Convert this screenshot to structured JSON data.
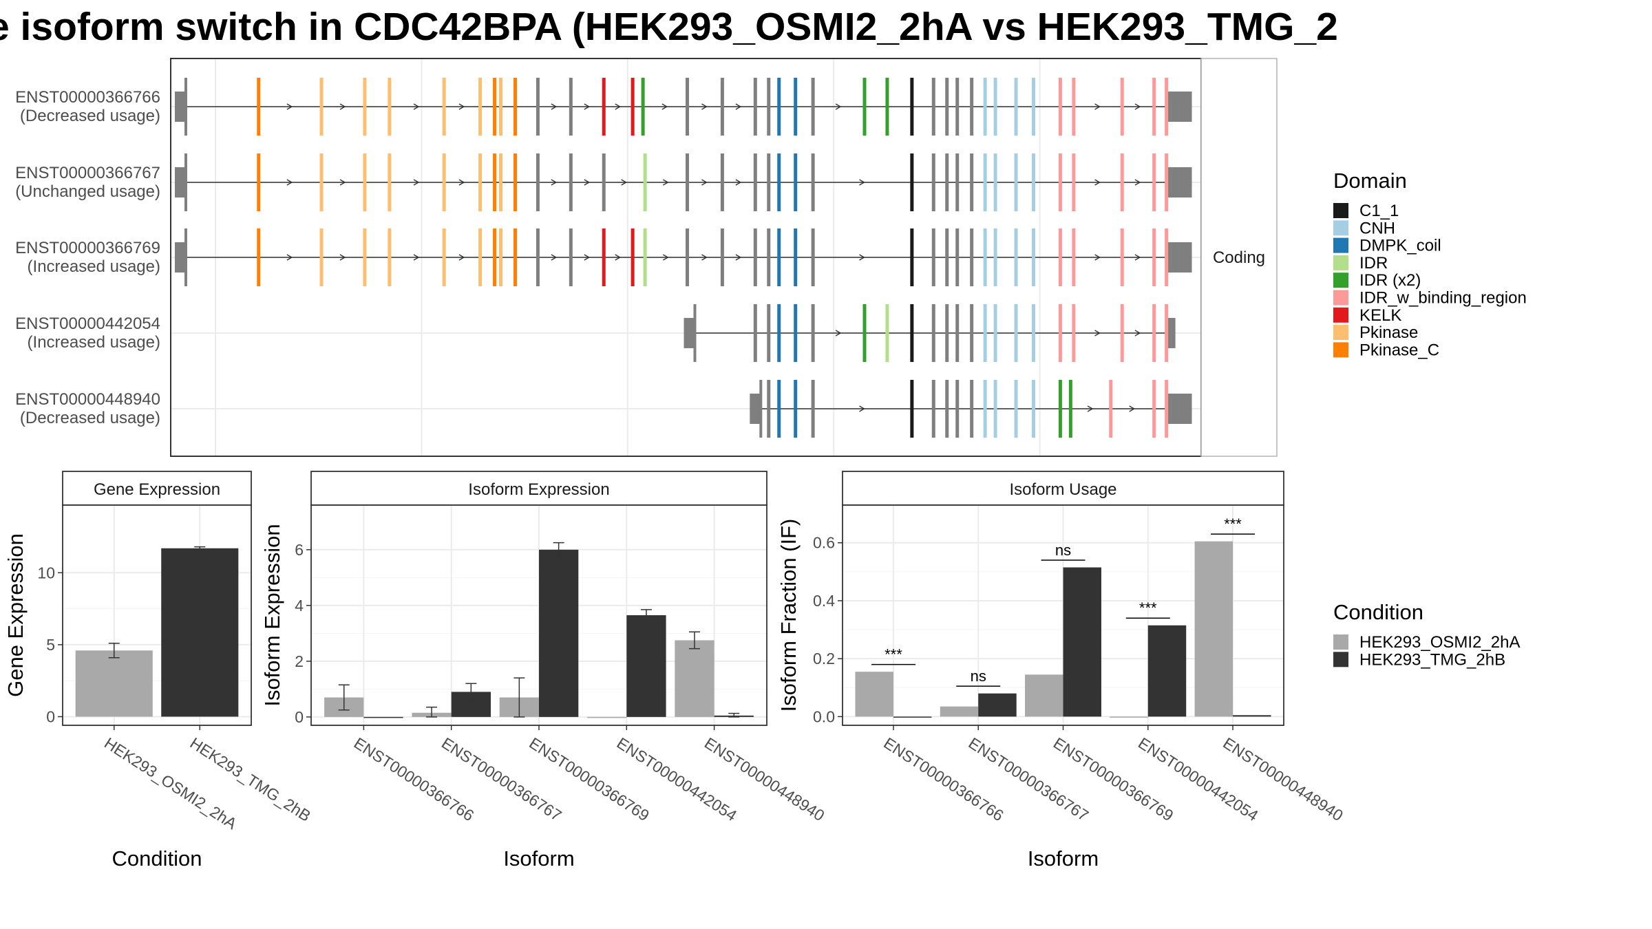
{
  "title": "e isoform switch in CDC42BPA (HEK293_OSMI2_2hA vs HEK293_TMG_2",
  "colors": {
    "HEK293_OSMI2_2hA": "#a9a9a9",
    "HEK293_TMG_2hB": "#333333",
    "grid": "#ebebeb",
    "intron_gray": "#7f7f7f"
  },
  "chart_data": [
    {
      "type": "gene-structure",
      "facet_label": "Coding",
      "x_domain": [
        0,
        1000
      ],
      "transcripts": [
        {
          "id": "ENST00000366766",
          "usage": "(Decreased usage)",
          "start": 4,
          "end": 991
        },
        {
          "id": "ENST00000366767",
          "usage": "(Unchanged usage)",
          "start": 4,
          "end": 991
        },
        {
          "id": "ENST00000366769",
          "usage": "(Increased usage)",
          "start": 4,
          "end": 991
        },
        {
          "id": "ENST00000442054",
          "usage": "(Increased usage)",
          "start": 498,
          "end": 975
        },
        {
          "id": "ENST00000448940",
          "usage": "(Decreased usage)",
          "start": 562,
          "end": 991
        }
      ],
      "exons": [
        [
          [
            85,
            "Pkinase_C"
          ],
          [
            146,
            "Pkinase"
          ],
          [
            188,
            "Pkinase"
          ],
          [
            212,
            "Pkinase"
          ],
          [
            265,
            "Pkinase"
          ],
          [
            300,
            "Pkinase"
          ],
          [
            314,
            "Pkinase_C"
          ],
          [
            320,
            "Pkinase"
          ],
          [
            334,
            "Pkinase_C"
          ],
          [
            356,
            "gray"
          ],
          [
            388,
            "gray"
          ],
          [
            420,
            "KELK"
          ],
          [
            448,
            "KELK"
          ],
          [
            458,
            "IDR (x2)"
          ],
          [
            501,
            "gray"
          ],
          [
            535,
            "gray"
          ],
          [
            567,
            "gray"
          ],
          [
            580,
            "gray"
          ],
          [
            590,
            "DMPK_coil"
          ],
          [
            606,
            "DMPK_coil"
          ],
          [
            623,
            "gray"
          ],
          [
            673,
            "IDR (x2)"
          ],
          [
            695,
            "IDR (x2)"
          ],
          [
            719,
            "C1_1"
          ],
          [
            740,
            "gray"
          ],
          [
            753,
            "gray"
          ],
          [
            763,
            "gray"
          ],
          [
            777,
            "gray"
          ],
          [
            790,
            "CNH"
          ],
          [
            800,
            "CNH"
          ],
          [
            820,
            "CNH"
          ],
          [
            837,
            "CNH"
          ],
          [
            863,
            "IDR_w_binding_region"
          ],
          [
            876,
            "IDR_w_binding_region"
          ],
          [
            923,
            "IDR_w_binding_region"
          ],
          [
            954,
            "IDR_w_binding_region"
          ],
          [
            966,
            "IDR_w_binding_region"
          ]
        ],
        [
          [
            85,
            "Pkinase_C"
          ],
          [
            146,
            "Pkinase"
          ],
          [
            188,
            "Pkinase"
          ],
          [
            212,
            "Pkinase"
          ],
          [
            265,
            "Pkinase"
          ],
          [
            300,
            "Pkinase"
          ],
          [
            314,
            "Pkinase_C"
          ],
          [
            320,
            "Pkinase"
          ],
          [
            334,
            "Pkinase_C"
          ],
          [
            356,
            "gray"
          ],
          [
            388,
            "gray"
          ],
          [
            420,
            "gray"
          ],
          [
            460,
            "IDR"
          ],
          [
            501,
            "gray"
          ],
          [
            535,
            "gray"
          ],
          [
            567,
            "gray"
          ],
          [
            580,
            "gray"
          ],
          [
            590,
            "DMPK_coil"
          ],
          [
            606,
            "DMPK_coil"
          ],
          [
            623,
            "gray"
          ],
          [
            719,
            "C1_1"
          ],
          [
            740,
            "gray"
          ],
          [
            753,
            "gray"
          ],
          [
            763,
            "gray"
          ],
          [
            777,
            "gray"
          ],
          [
            790,
            "CNH"
          ],
          [
            800,
            "CNH"
          ],
          [
            820,
            "CNH"
          ],
          [
            837,
            "CNH"
          ],
          [
            863,
            "IDR_w_binding_region"
          ],
          [
            876,
            "IDR_w_binding_region"
          ],
          [
            923,
            "IDR_w_binding_region"
          ],
          [
            954,
            "IDR_w_binding_region"
          ],
          [
            966,
            "IDR_w_binding_region"
          ]
        ],
        [
          [
            85,
            "Pkinase_C"
          ],
          [
            146,
            "Pkinase"
          ],
          [
            188,
            "Pkinase"
          ],
          [
            212,
            "Pkinase"
          ],
          [
            265,
            "Pkinase"
          ],
          [
            300,
            "Pkinase"
          ],
          [
            314,
            "Pkinase_C"
          ],
          [
            320,
            "Pkinase"
          ],
          [
            334,
            "Pkinase_C"
          ],
          [
            356,
            "gray"
          ],
          [
            388,
            "gray"
          ],
          [
            420,
            "KELK"
          ],
          [
            448,
            "KELK"
          ],
          [
            460,
            "IDR"
          ],
          [
            501,
            "gray"
          ],
          [
            535,
            "gray"
          ],
          [
            567,
            "gray"
          ],
          [
            580,
            "gray"
          ],
          [
            590,
            "DMPK_coil"
          ],
          [
            606,
            "DMPK_coil"
          ],
          [
            623,
            "gray"
          ],
          [
            719,
            "C1_1"
          ],
          [
            740,
            "gray"
          ],
          [
            753,
            "gray"
          ],
          [
            763,
            "gray"
          ],
          [
            777,
            "gray"
          ],
          [
            790,
            "CNH"
          ],
          [
            800,
            "CNH"
          ],
          [
            820,
            "CNH"
          ],
          [
            837,
            "CNH"
          ],
          [
            863,
            "IDR_w_binding_region"
          ],
          [
            876,
            "IDR_w_binding_region"
          ],
          [
            923,
            "IDR_w_binding_region"
          ],
          [
            954,
            "IDR_w_binding_region"
          ],
          [
            966,
            "IDR_w_binding_region"
          ]
        ],
        [
          [
            567,
            "gray"
          ],
          [
            580,
            "gray"
          ],
          [
            590,
            "DMPK_coil"
          ],
          [
            606,
            "DMPK_coil"
          ],
          [
            623,
            "gray"
          ],
          [
            673,
            "IDR (x2)"
          ],
          [
            695,
            "IDR"
          ],
          [
            719,
            "C1_1"
          ],
          [
            740,
            "gray"
          ],
          [
            753,
            "gray"
          ],
          [
            763,
            "gray"
          ],
          [
            777,
            "gray"
          ],
          [
            790,
            "CNH"
          ],
          [
            800,
            "CNH"
          ],
          [
            820,
            "CNH"
          ],
          [
            837,
            "CNH"
          ],
          [
            863,
            "IDR_w_binding_region"
          ],
          [
            876,
            "IDR_w_binding_region"
          ],
          [
            923,
            "IDR_w_binding_region"
          ],
          [
            954,
            "IDR_w_binding_region"
          ],
          [
            966,
            "IDR_w_binding_region"
          ]
        ],
        [
          [
            580,
            "gray"
          ],
          [
            590,
            "DMPK_coil"
          ],
          [
            606,
            "DMPK_coil"
          ],
          [
            623,
            "gray"
          ],
          [
            719,
            "C1_1"
          ],
          [
            740,
            "gray"
          ],
          [
            753,
            "gray"
          ],
          [
            763,
            "gray"
          ],
          [
            777,
            "gray"
          ],
          [
            790,
            "CNH"
          ],
          [
            800,
            "CNH"
          ],
          [
            820,
            "CNH"
          ],
          [
            837,
            "CNH"
          ],
          [
            863,
            "IDR (x2)"
          ],
          [
            873,
            "IDR (x2)"
          ],
          [
            912,
            "IDR_w_binding_region"
          ],
          [
            954,
            "IDR_w_binding_region"
          ],
          [
            966,
            "IDR_w_binding_region"
          ]
        ]
      ]
    },
    {
      "type": "bar",
      "title": "Gene Expression",
      "xlabel": "Condition",
      "ylabel": "Gene Expression",
      "ylim": [
        -0.6,
        14.7
      ],
      "yticks": [
        0,
        5,
        10
      ],
      "categories": [
        "HEK293_OSMI2_2hA",
        "HEK293_TMG_2hB"
      ],
      "values": [
        4.6,
        11.7
      ],
      "errors": [
        0.5,
        0.1
      ]
    },
    {
      "type": "bar",
      "title": "Isoform Expression",
      "xlabel": "Isoform",
      "ylabel": "Isoform Expression",
      "ylim": [
        -0.3,
        7.6
      ],
      "yticks": [
        0,
        2,
        4,
        6
      ],
      "categories": [
        "ENST00000366766",
        "ENST00000366767",
        "ENST00000366769",
        "ENST00000442054",
        "ENST00000448940"
      ],
      "series": [
        {
          "name": "HEK293_OSMI2_2hA",
          "values": [
            0.7,
            0.15,
            0.7,
            0.0,
            2.75
          ],
          "errors": [
            0.45,
            0.2,
            0.7,
            0.0,
            0.3
          ]
        },
        {
          "name": "HEK293_TMG_2hB",
          "values": [
            0.0,
            0.9,
            6.0,
            3.65,
            0.05
          ],
          "errors": [
            0.0,
            0.3,
            0.25,
            0.2,
            0.08
          ]
        }
      ]
    },
    {
      "type": "bar",
      "title": "Isoform Usage",
      "xlabel": "Isoform",
      "ylabel": "Isoform Fraction (IF)",
      "ylim": [
        -0.03,
        0.73
      ],
      "yticks": [
        "0.0",
        "0.2",
        "0.4",
        "0.6"
      ],
      "categories": [
        "ENST00000366766",
        "ENST00000366767",
        "ENST00000366769",
        "ENST00000442054",
        "ENST00000448940"
      ],
      "series": [
        {
          "name": "HEK293_OSMI2_2hA",
          "values": [
            0.155,
            0.035,
            0.145,
            0.0,
            0.605
          ]
        },
        {
          "name": "HEK293_TMG_2hB",
          "values": [
            0.0,
            0.08,
            0.515,
            0.315,
            0.005
          ]
        }
      ],
      "significance": [
        "***",
        "ns",
        "ns",
        "***",
        "***"
      ]
    }
  ],
  "legend_domain": {
    "title": "Domain",
    "items": [
      {
        "label": "C1_1",
        "color": "#1a1a1a"
      },
      {
        "label": "CNH",
        "color": "#a6cee3"
      },
      {
        "label": "DMPK_coil",
        "color": "#1f78b4"
      },
      {
        "label": "IDR",
        "color": "#b2df8a"
      },
      {
        "label": "IDR (x2)",
        "color": "#33a02c"
      },
      {
        "label": "IDR_w_binding_region",
        "color": "#fb9a99"
      },
      {
        "label": "KELK",
        "color": "#e31a1c"
      },
      {
        "label": "Pkinase",
        "color": "#fdbf6f"
      },
      {
        "label": "Pkinase_C",
        "color": "#ff7f00"
      }
    ]
  },
  "legend_condition": {
    "title": "Condition",
    "items": [
      {
        "label": "HEK293_OSMI2_2hA",
        "color": "#a9a9a9"
      },
      {
        "label": "HEK293_TMG_2hB",
        "color": "#333333"
      }
    ]
  }
}
